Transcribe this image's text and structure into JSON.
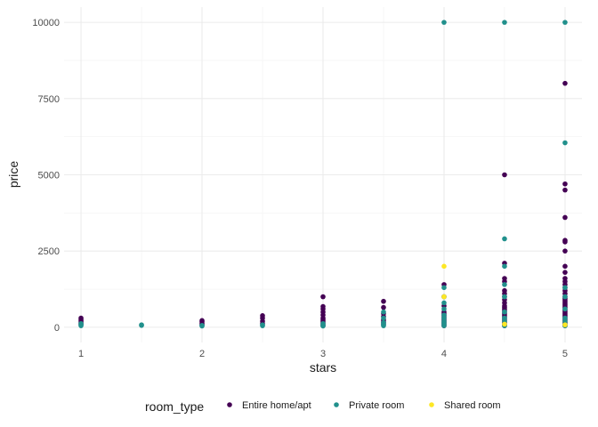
{
  "chart_data": {
    "type": "scatter",
    "title": "",
    "xlabel": "stars",
    "ylabel": "price",
    "xlim": [
      0.86,
      5.14
    ],
    "ylim": [
      -500,
      10500
    ],
    "x_ticks": [
      1,
      2,
      3,
      4,
      5
    ],
    "y_ticks": [
      0,
      2500,
      5000,
      7500,
      10000
    ],
    "x_tick_labels": [
      "1",
      "2",
      "3",
      "4",
      "5"
    ],
    "y_tick_labels": [
      "0",
      "2500",
      "5000",
      "7500",
      "10000"
    ],
    "grid": true,
    "legend": {
      "position": "bottom",
      "title": "room_type"
    },
    "series": [
      {
        "name": "Entire home/apt",
        "color": "#440154",
        "points": [
          [
            1,
            300
          ],
          [
            1,
            250
          ],
          [
            1,
            200
          ],
          [
            1,
            150
          ],
          [
            1,
            100
          ],
          [
            2,
            220
          ],
          [
            2,
            180
          ],
          [
            2,
            120
          ],
          [
            2,
            80
          ],
          [
            2.5,
            380
          ],
          [
            2.5,
            300
          ],
          [
            2.5,
            200
          ],
          [
            2.5,
            120
          ],
          [
            3,
            1000
          ],
          [
            3,
            680
          ],
          [
            3,
            600
          ],
          [
            3,
            500
          ],
          [
            3,
            400
          ],
          [
            3,
            300
          ],
          [
            3,
            250
          ],
          [
            3,
            200
          ],
          [
            3,
            150
          ],
          [
            3,
            100
          ],
          [
            3,
            50
          ],
          [
            3.5,
            850
          ],
          [
            3.5,
            650
          ],
          [
            3.5,
            450
          ],
          [
            3.5,
            350
          ],
          [
            3.5,
            250
          ],
          [
            3.5,
            200
          ],
          [
            3.5,
            150
          ],
          [
            3.5,
            100
          ],
          [
            4,
            1400
          ],
          [
            4,
            1000
          ],
          [
            4,
            700
          ],
          [
            4,
            500
          ],
          [
            4,
            450
          ],
          [
            4,
            400
          ],
          [
            4,
            350
          ],
          [
            4,
            300
          ],
          [
            4,
            250
          ],
          [
            4,
            200
          ],
          [
            4,
            150
          ],
          [
            4,
            100
          ],
          [
            4,
            50
          ],
          [
            4.5,
            5000
          ],
          [
            4.5,
            2100
          ],
          [
            4.5,
            1600
          ],
          [
            4.5,
            1500
          ],
          [
            4.5,
            1200
          ],
          [
            4.5,
            1100
          ],
          [
            4.5,
            1000
          ],
          [
            4.5,
            900
          ],
          [
            4.5,
            800
          ],
          [
            4.5,
            700
          ],
          [
            4.5,
            650
          ],
          [
            4.5,
            600
          ],
          [
            4.5,
            550
          ],
          [
            4.5,
            500
          ],
          [
            4.5,
            450
          ],
          [
            4.5,
            400
          ],
          [
            4.5,
            350
          ],
          [
            4.5,
            300
          ],
          [
            4.5,
            250
          ],
          [
            4.5,
            200
          ],
          [
            4.5,
            150
          ],
          [
            4.5,
            100
          ],
          [
            4.5,
            50
          ],
          [
            5,
            8000
          ],
          [
            5,
            4700
          ],
          [
            5,
            4500
          ],
          [
            5,
            3600
          ],
          [
            5,
            2850
          ],
          [
            5,
            2800
          ],
          [
            5,
            2500
          ],
          [
            5,
            2000
          ],
          [
            5,
            1800
          ],
          [
            5,
            1600
          ],
          [
            5,
            1500
          ],
          [
            5,
            1400
          ],
          [
            5,
            1300
          ],
          [
            5,
            1200
          ],
          [
            5,
            1100
          ],
          [
            5,
            1000
          ],
          [
            5,
            950
          ],
          [
            5,
            900
          ],
          [
            5,
            850
          ],
          [
            5,
            800
          ],
          [
            5,
            750
          ],
          [
            5,
            700
          ],
          [
            5,
            650
          ],
          [
            5,
            600
          ],
          [
            5,
            550
          ],
          [
            5,
            500
          ],
          [
            5,
            450
          ],
          [
            5,
            400
          ],
          [
            5,
            350
          ],
          [
            5,
            300
          ],
          [
            5,
            250
          ],
          [
            5,
            200
          ],
          [
            5,
            150
          ],
          [
            5,
            100
          ],
          [
            5,
            50
          ]
        ]
      },
      {
        "name": "Private room",
        "color": "#21908C",
        "points": [
          [
            1,
            120
          ],
          [
            1,
            80
          ],
          [
            1,
            50
          ],
          [
            1.5,
            80
          ],
          [
            1.5,
            60
          ],
          [
            2,
            60
          ],
          [
            2,
            40
          ],
          [
            2.5,
            80
          ],
          [
            2.5,
            50
          ],
          [
            3,
            120
          ],
          [
            3,
            60
          ],
          [
            3,
            40
          ],
          [
            3.5,
            500
          ],
          [
            3.5,
            300
          ],
          [
            3.5,
            150
          ],
          [
            3.5,
            80
          ],
          [
            3.5,
            50
          ],
          [
            4,
            10000
          ],
          [
            4,
            1300
          ],
          [
            4,
            1000
          ],
          [
            4,
            800
          ],
          [
            4,
            600
          ],
          [
            4,
            400
          ],
          [
            4,
            300
          ],
          [
            4,
            200
          ],
          [
            4,
            150
          ],
          [
            4,
            100
          ],
          [
            4,
            50
          ],
          [
            4.5,
            10000
          ],
          [
            4.5,
            2900
          ],
          [
            4.5,
            2000
          ],
          [
            4.5,
            1400
          ],
          [
            4.5,
            1000
          ],
          [
            4.5,
            500
          ],
          [
            4.5,
            300
          ],
          [
            4.5,
            200
          ],
          [
            4.5,
            100
          ],
          [
            4.5,
            50
          ],
          [
            5,
            10000
          ],
          [
            5,
            6050
          ],
          [
            5,
            1300
          ],
          [
            5,
            1000
          ],
          [
            5,
            600
          ],
          [
            5,
            300
          ],
          [
            5,
            200
          ],
          [
            5,
            100
          ],
          [
            5,
            50
          ]
        ]
      },
      {
        "name": "Shared room",
        "color": "#FDE725",
        "points": [
          [
            4,
            2000
          ],
          [
            4,
            1000
          ],
          [
            4.5,
            100
          ],
          [
            5,
            80
          ]
        ]
      }
    ]
  }
}
